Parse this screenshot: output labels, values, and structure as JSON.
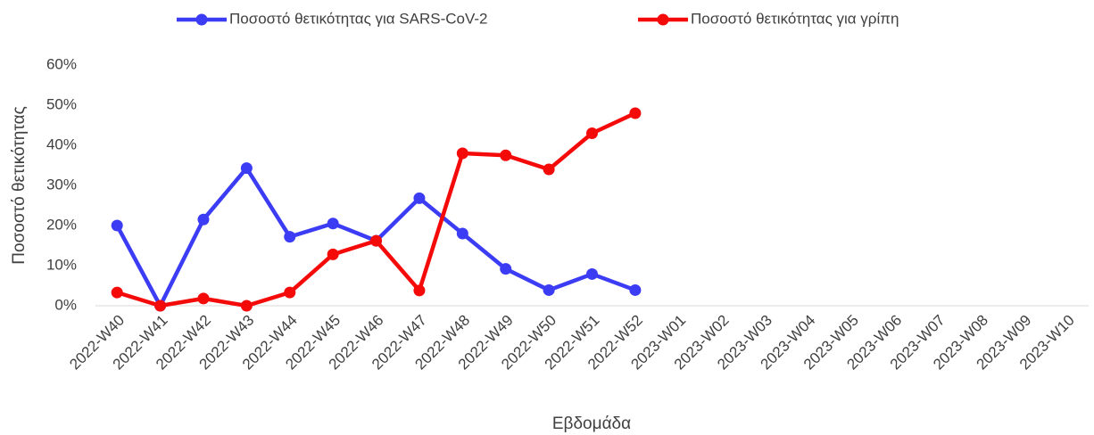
{
  "chart_data": {
    "type": "line",
    "y_label": "Ποσοστό θετικότητας",
    "x_label": "Εβδομάδα",
    "categories": [
      "2022-W40",
      "2022-W41",
      "2022-W42",
      "2022-W43",
      "2022-W44",
      "2022-W45",
      "2022-W46",
      "2022-W47",
      "2022-W48",
      "2022-W49",
      "2022-W50",
      "2022-W51",
      "2022-W52",
      "2023-W01",
      "2023-W02",
      "2023-W03",
      "2023-W04",
      "2023-W05",
      "2023-W06",
      "2023-W07",
      "2023-W08",
      "2023-W09",
      "2023-W10"
    ],
    "series": [
      {
        "name": "Ποσοστό θετικότητας για SARS-CoV-2",
        "color": "#3c3cf5",
        "values": [
          20,
          0,
          21.5,
          34.3,
          17.2,
          20.5,
          16.2,
          26.8,
          18,
          9.2,
          3.9,
          7.9,
          3.9,
          null,
          null,
          null,
          null,
          null,
          null,
          null,
          null,
          null,
          null
        ]
      },
      {
        "name": "Ποσοστό θετικότητας για γρίπη",
        "color": "#f50a0a",
        "values": [
          3.3,
          0,
          1.8,
          0,
          3.3,
          12.8,
          16.2,
          3.8,
          38,
          37.5,
          34,
          43,
          48,
          null,
          null,
          null,
          null,
          null,
          null,
          null,
          null,
          null,
          null
        ]
      }
    ],
    "ylim": [
      0,
      60
    ],
    "yticks": [
      {
        "value": 0,
        "label": "0%"
      },
      {
        "value": 10,
        "label": "10%"
      },
      {
        "value": 20,
        "label": "20%"
      },
      {
        "value": 30,
        "label": "30%"
      },
      {
        "value": 40,
        "label": "40%"
      },
      {
        "value": 50,
        "label": "50%"
      },
      {
        "value": 60,
        "label": "60%"
      }
    ],
    "legend": "top"
  }
}
